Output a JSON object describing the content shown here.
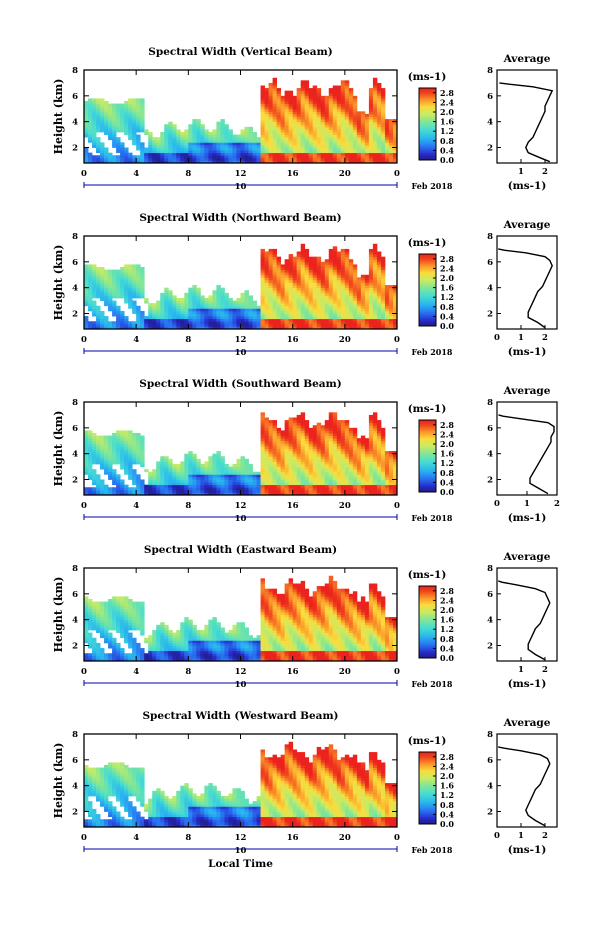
{
  "chart_data": [
    {
      "type": "heatmap",
      "title": "Spectral Width (Vertical Beam)",
      "ylabel": "Height (km)",
      "x_ticks": [
        "0",
        "4",
        "8",
        "12",
        "16",
        "20",
        "0"
      ],
      "y_ticks": [
        "2",
        "4",
        "6",
        "8"
      ],
      "date_label": "10",
      "month_label": "Feb 2018",
      "xlim": [
        0,
        24
      ],
      "ylim": [
        0.8,
        8
      ],
      "colorbar_unit": "(ms-1)",
      "colorbar_ticks": [
        "0.0",
        "0.4",
        "0.8",
        "1.2",
        "1.6",
        "2.0",
        "2.4",
        "2.8"
      ],
      "colorbar_range": [
        0,
        3.0
      ],
      "profile": {
        "title": "Average",
        "x_ticks": [
          "1",
          "2"
        ],
        "xlim": [
          0,
          2.5
        ],
        "xlabel": "(ms-1)",
        "y_ticks": [
          "2",
          "4",
          "6",
          "8"
        ],
        "ylim": [
          0.8,
          8
        ],
        "points": [
          [
            2.2,
            0.9
          ],
          [
            1.8,
            1.2
          ],
          [
            1.3,
            1.6
          ],
          [
            1.2,
            2.0
          ],
          [
            1.3,
            2.4
          ],
          [
            1.5,
            2.8
          ],
          [
            1.6,
            3.2
          ],
          [
            1.7,
            3.6
          ],
          [
            1.8,
            4.0
          ],
          [
            1.9,
            4.4
          ],
          [
            2.0,
            4.8
          ],
          [
            2.0,
            5.2
          ],
          [
            2.1,
            5.6
          ],
          [
            2.2,
            6.0
          ],
          [
            2.3,
            6.4
          ],
          [
            1.5,
            6.7
          ],
          [
            0.5,
            6.9
          ],
          [
            0.1,
            7.0
          ]
        ]
      }
    },
    {
      "type": "heatmap",
      "title": "Spectral Width (Northward Beam)",
      "ylabel": "Height (km)",
      "x_ticks": [
        "0",
        "4",
        "8",
        "12",
        "16",
        "20",
        "0"
      ],
      "y_ticks": [
        "2",
        "4",
        "6",
        "8"
      ],
      "date_label": "10",
      "month_label": "Feb 2018",
      "xlim": [
        0,
        24
      ],
      "ylim": [
        0.8,
        8
      ],
      "colorbar_unit": "(ms-1)",
      "colorbar_ticks": [
        "0.0",
        "0.4",
        "0.8",
        "1.2",
        "1.6",
        "2.0",
        "2.4",
        "2.8"
      ],
      "colorbar_range": [
        0,
        3.0
      ],
      "profile": {
        "title": "Average",
        "x_ticks": [
          "0",
          "1",
          "2"
        ],
        "xlim": [
          0,
          2.5
        ],
        "xlabel": "(ms-1)",
        "y_ticks": [
          "2",
          "4",
          "6",
          "8"
        ],
        "ylim": [
          0.8,
          8
        ],
        "points": [
          [
            2.0,
            0.9
          ],
          [
            1.7,
            1.3
          ],
          [
            1.3,
            1.7
          ],
          [
            1.3,
            2.1
          ],
          [
            1.4,
            2.5
          ],
          [
            1.5,
            2.9
          ],
          [
            1.6,
            3.3
          ],
          [
            1.7,
            3.7
          ],
          [
            1.9,
            4.1
          ],
          [
            2.0,
            4.5
          ],
          [
            2.1,
            4.9
          ],
          [
            2.2,
            5.3
          ],
          [
            2.3,
            5.7
          ],
          [
            2.2,
            6.1
          ],
          [
            2.0,
            6.4
          ],
          [
            1.2,
            6.7
          ],
          [
            0.3,
            6.9
          ],
          [
            0.05,
            7.0
          ]
        ]
      }
    },
    {
      "type": "heatmap",
      "title": "Spectral Width (Southward Beam)",
      "ylabel": "Height (km)",
      "x_ticks": [
        "0",
        "4",
        "8",
        "12",
        "16",
        "20",
        "0"
      ],
      "y_ticks": [
        "2",
        "4",
        "6",
        "8"
      ],
      "date_label": "10",
      "month_label": "Feb 2018",
      "xlim": [
        0,
        24
      ],
      "ylim": [
        0.8,
        8
      ],
      "colorbar_unit": "(ms-1)",
      "colorbar_ticks": [
        "0.0",
        "0.4",
        "0.8",
        "1.2",
        "1.6",
        "2.0",
        "2.4",
        "2.8"
      ],
      "colorbar_range": [
        0,
        3.0
      ],
      "profile": {
        "title": "Average",
        "x_ticks": [
          "0",
          "1",
          "2"
        ],
        "xlim": [
          0,
          2.0
        ],
        "xlabel": "(ms-1)",
        "y_ticks": [
          "2",
          "4",
          "6",
          "8"
        ],
        "ylim": [
          0.8,
          8
        ],
        "points": [
          [
            1.7,
            0.9
          ],
          [
            1.4,
            1.3
          ],
          [
            1.1,
            1.7
          ],
          [
            1.1,
            2.1
          ],
          [
            1.2,
            2.5
          ],
          [
            1.3,
            2.9
          ],
          [
            1.4,
            3.3
          ],
          [
            1.5,
            3.7
          ],
          [
            1.6,
            4.1
          ],
          [
            1.7,
            4.5
          ],
          [
            1.8,
            4.9
          ],
          [
            1.8,
            5.3
          ],
          [
            1.9,
            5.7
          ],
          [
            1.9,
            6.1
          ],
          [
            1.7,
            6.4
          ],
          [
            0.8,
            6.7
          ],
          [
            0.2,
            6.9
          ],
          [
            0.05,
            7.0
          ]
        ]
      }
    },
    {
      "type": "heatmap",
      "title": "Spectral Width (Eastward Beam)",
      "ylabel": "Height (km)",
      "x_ticks": [
        "0",
        "4",
        "8",
        "12",
        "16",
        "20",
        "0"
      ],
      "y_ticks": [
        "2",
        "4",
        "6",
        "8"
      ],
      "date_label": "10",
      "month_label": "Feb 2018",
      "xlim": [
        0,
        24
      ],
      "ylim": [
        0.8,
        8
      ],
      "colorbar_unit": "(ms-1)",
      "colorbar_ticks": [
        "0.0",
        "0.4",
        "0.8",
        "1.2",
        "1.6",
        "2.0",
        "2.4",
        "2.8"
      ],
      "colorbar_range": [
        0,
        3.0
      ],
      "profile": {
        "title": "Average",
        "x_ticks": [
          "1",
          "2"
        ],
        "xlim": [
          0,
          2.5
        ],
        "xlabel": "(ms-1)",
        "y_ticks": [
          "2",
          "4",
          "6",
          "8"
        ],
        "ylim": [
          0.8,
          8
        ],
        "points": [
          [
            2.0,
            0.9
          ],
          [
            1.6,
            1.3
          ],
          [
            1.3,
            1.7
          ],
          [
            1.3,
            2.1
          ],
          [
            1.4,
            2.5
          ],
          [
            1.5,
            2.9
          ],
          [
            1.6,
            3.3
          ],
          [
            1.8,
            3.7
          ],
          [
            1.9,
            4.1
          ],
          [
            2.0,
            4.5
          ],
          [
            2.1,
            4.9
          ],
          [
            2.2,
            5.3
          ],
          [
            2.1,
            5.7
          ],
          [
            2.0,
            6.1
          ],
          [
            1.6,
            6.4
          ],
          [
            0.8,
            6.7
          ],
          [
            0.2,
            6.9
          ],
          [
            0.05,
            7.0
          ]
        ]
      }
    },
    {
      "type": "heatmap",
      "title": "Spectral Width (Westward Beam)",
      "ylabel": "Height (km)",
      "xlabel": "Local Time",
      "x_ticks": [
        "0",
        "4",
        "8",
        "12",
        "16",
        "20",
        "0"
      ],
      "y_ticks": [
        "2",
        "4",
        "6",
        "8"
      ],
      "date_label": "10",
      "month_label": "Feb 2018",
      "xlim": [
        0,
        24
      ],
      "ylim": [
        0.8,
        8
      ],
      "colorbar_unit": "(ms-1)",
      "colorbar_ticks": [
        "0.0",
        "0.4",
        "0.8",
        "1.2",
        "1.6",
        "2.0",
        "2.4",
        "2.8"
      ],
      "colorbar_range": [
        0,
        3.0
      ],
      "profile": {
        "title": "Average",
        "x_ticks": [
          "0",
          "1",
          "2"
        ],
        "xlim": [
          0,
          2.5
        ],
        "xlabel": "(ms-1)",
        "y_ticks": [
          "2",
          "4",
          "6",
          "8"
        ],
        "ylim": [
          0.8,
          8
        ],
        "points": [
          [
            2.0,
            0.9
          ],
          [
            1.6,
            1.3
          ],
          [
            1.3,
            1.7
          ],
          [
            1.2,
            2.1
          ],
          [
            1.3,
            2.5
          ],
          [
            1.4,
            2.9
          ],
          [
            1.5,
            3.3
          ],
          [
            1.6,
            3.7
          ],
          [
            1.8,
            4.1
          ],
          [
            1.9,
            4.5
          ],
          [
            2.0,
            4.9
          ],
          [
            2.1,
            5.3
          ],
          [
            2.2,
            5.7
          ],
          [
            2.1,
            6.1
          ],
          [
            1.8,
            6.4
          ],
          [
            1.0,
            6.7
          ],
          [
            0.3,
            6.9
          ],
          [
            0.05,
            7.0
          ]
        ]
      }
    }
  ]
}
